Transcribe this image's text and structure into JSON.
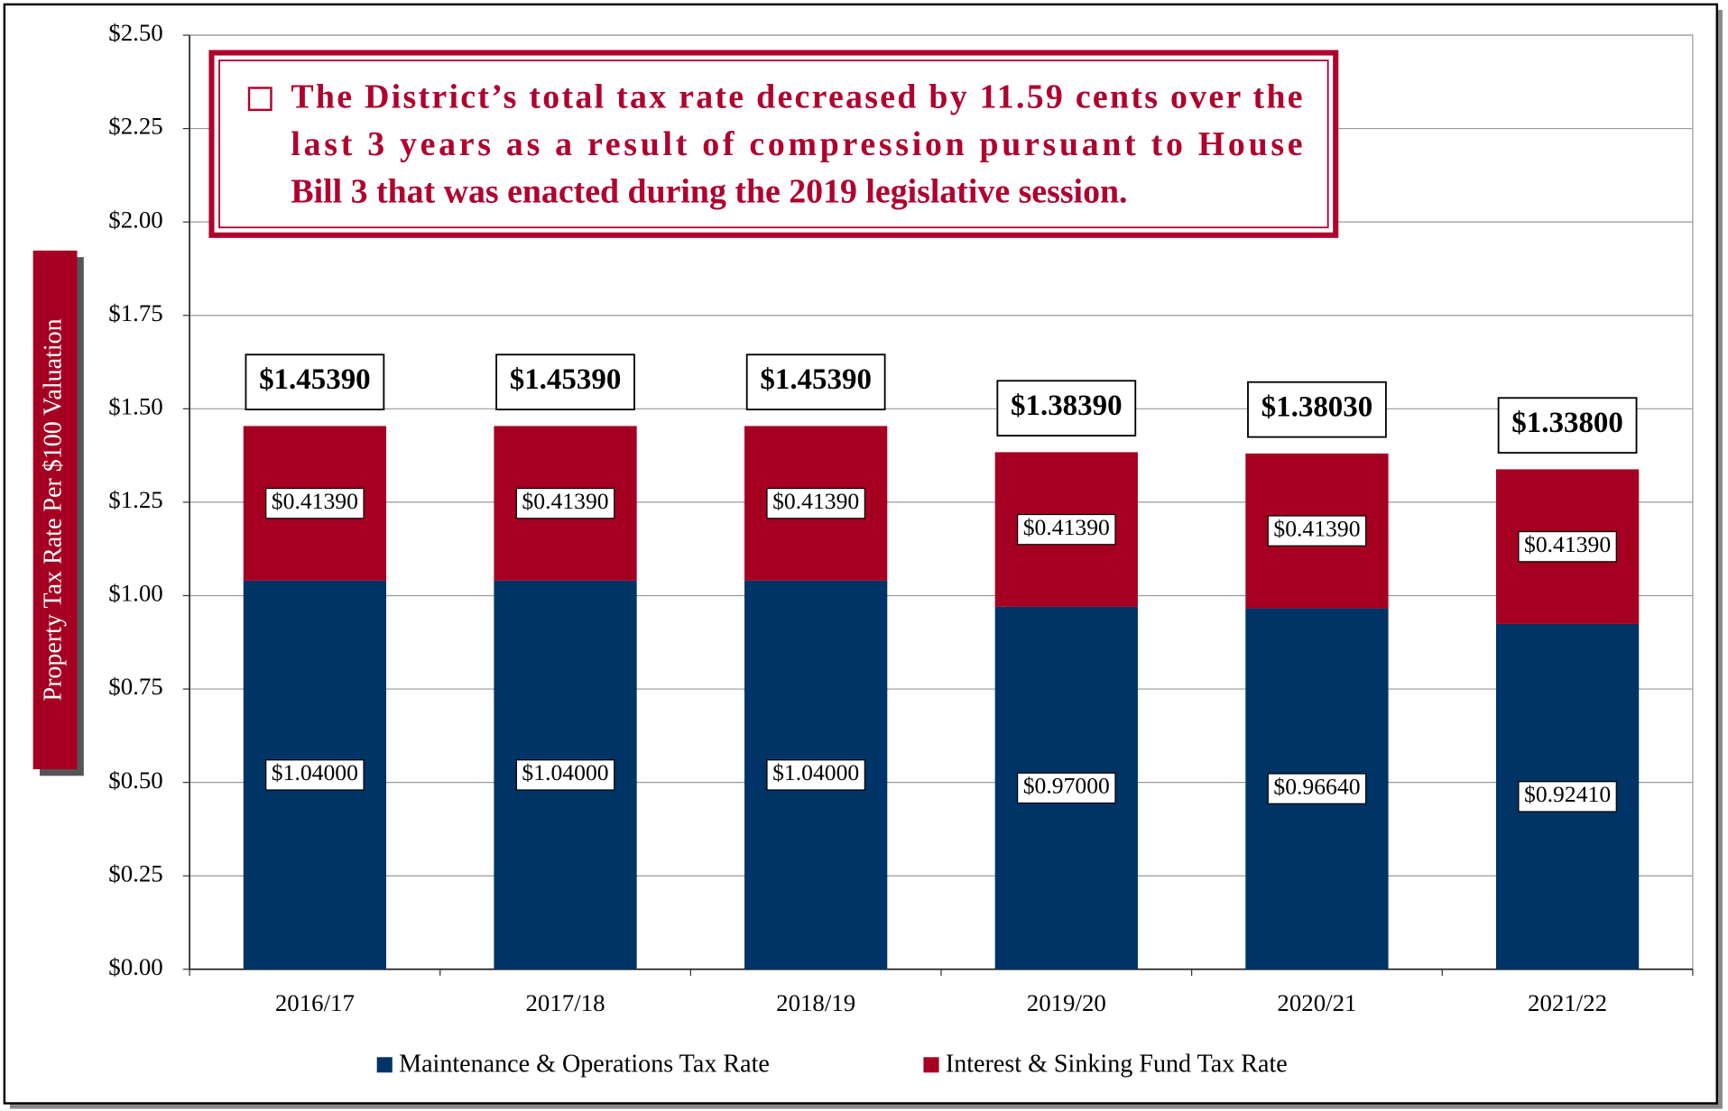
{
  "chart_data": {
    "type": "stacked_bar",
    "annotation": [
      "The District’s total tax rate decreased by 11.59 cents over the",
      "last 3 years as a result of compression pursuant to House",
      "Bill 3 that was enacted during the 2019 legislative session."
    ],
    "y_label": "Property Tax Rate Per $100 Valuation",
    "categories": [
      "2016/17",
      "2017/18",
      "2018/19",
      "2019/20",
      "2020/21",
      "2021/22"
    ],
    "series": [
      {
        "name": "Maintenance & Operations Tax Rate",
        "color": "#003366",
        "values": [
          1.04,
          1.04,
          1.04,
          0.97,
          0.9664,
          0.9241
        ],
        "value_labels": [
          "$1.04000",
          "$1.04000",
          "$1.04000",
          "$0.97000",
          "$0.96640",
          "$0.92410"
        ]
      },
      {
        "name": "Interest & Sinking Fund Tax Rate",
        "color": "#a50021",
        "values": [
          0.4139,
          0.4139,
          0.4139,
          0.4139,
          0.4139,
          0.4139
        ],
        "value_labels": [
          "$0.41390",
          "$0.41390",
          "$0.41390",
          "$0.41390",
          "$0.41390",
          "$0.41390"
        ]
      }
    ],
    "totals": [
      1.4539,
      1.4539,
      1.4539,
      1.3839,
      1.3803,
      1.338
    ],
    "total_labels": [
      "$1.45390",
      "$1.45390",
      "$1.45390",
      "$1.38390",
      "$1.38030",
      "$1.33800"
    ],
    "ylim": [
      0,
      2.5
    ],
    "yticks": [
      {
        "value": 0,
        "label": "$0.00"
      },
      {
        "value": 0.25,
        "label": "$0.25"
      },
      {
        "value": 0.5,
        "label": "$0.50"
      },
      {
        "value": 0.75,
        "label": "$0.75"
      },
      {
        "value": 1,
        "label": "$1.00"
      },
      {
        "value": 1.25,
        "label": "$1.25"
      },
      {
        "value": 1.5,
        "label": "$1.50"
      },
      {
        "value": 1.75,
        "label": "$1.75"
      },
      {
        "value": 2,
        "label": "$2.00"
      },
      {
        "value": 2.25,
        "label": "$2.25"
      },
      {
        "value": 2.5,
        "label": "$2.50"
      }
    ],
    "grid": true,
    "legend": "bottom"
  }
}
